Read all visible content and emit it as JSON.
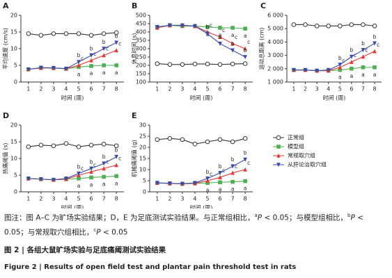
{
  "chart_data": [
    {
      "type": "line",
      "title": "A",
      "ylabel": "平均速度 (cm/s)",
      "xlabel": "时间 (周)",
      "x": [
        1,
        2,
        3,
        4,
        5,
        6,
        7,
        8
      ],
      "xlim": [
        0.4,
        8.6
      ],
      "xticks": [
        1,
        2,
        3,
        4,
        5,
        6,
        7,
        8
      ],
      "ylim": [
        0,
        20
      ],
      "yticks": [
        0,
        5,
        10,
        15,
        20
      ],
      "series": [
        {
          "color": "#333333",
          "marker": "circle",
          "values": [
            14.5,
            14,
            14.5,
            14.5,
            14.5,
            14,
            14.5,
            14.8
          ]
        },
        {
          "color": "#4caf50",
          "marker": "square",
          "values": [
            3.8,
            4.3,
            4.2,
            4,
            4.5,
            4.8,
            5,
            5
          ],
          "letters": [
            null,
            null,
            null,
            null,
            "a",
            "a",
            "a",
            "a"
          ]
        },
        {
          "color": "#e53935",
          "marker": "triangle",
          "values": [
            3.8,
            4.2,
            4.2,
            4,
            5,
            6.5,
            8,
            9.5
          ],
          "letters": [
            null,
            null,
            null,
            null,
            "c",
            "c",
            "c",
            "c"
          ]
        },
        {
          "color": "#3949ab",
          "marker": "down",
          "values": [
            3.8,
            4.3,
            4.2,
            4,
            6,
            8,
            10,
            11.8
          ],
          "letters": [
            null,
            null,
            null,
            null,
            "b",
            "b",
            "b",
            "b"
          ]
        }
      ]
    },
    {
      "type": "line",
      "title": "B",
      "ylabel": "休息时间 (s)",
      "xlabel": "时间 (周)",
      "x": [
        1,
        2,
        3,
        4,
        5,
        6,
        7,
        8
      ],
      "xlim": [
        0.4,
        8.6
      ],
      "xticks": [
        1,
        2,
        3,
        4,
        5,
        6,
        7,
        8
      ],
      "ylim": [
        100,
        500
      ],
      "yticks": [
        100,
        150,
        200,
        250,
        300,
        350,
        400,
        450,
        500
      ],
      "series": [
        {
          "color": "#333333",
          "marker": "circle",
          "values": [
            210,
            205,
            205,
            208,
            208,
            205,
            208,
            210
          ]
        },
        {
          "color": "#4caf50",
          "marker": "square",
          "values": [
            430,
            440,
            435,
            435,
            430,
            425,
            425,
            420
          ],
          "letters": [
            null,
            null,
            null,
            null,
            "a",
            "a",
            "a",
            "a"
          ]
        },
        {
          "color": "#e53935",
          "marker": "triangle",
          "values": [
            425,
            440,
            440,
            435,
            400,
            370,
            330,
            300
          ],
          "letters": [
            null,
            null,
            null,
            null,
            "c",
            "c",
            "c",
            "c"
          ]
        },
        {
          "color": "#3949ab",
          "marker": "down",
          "values": [
            430,
            440,
            440,
            435,
            390,
            330,
            290,
            250
          ],
          "letters": [
            null,
            null,
            null,
            null,
            "b",
            "b",
            "b",
            "b"
          ]
        }
      ]
    },
    {
      "type": "line",
      "title": "C",
      "ylabel": "运动总距离 (cm)",
      "xlabel": "时间 (周)",
      "x": [
        1,
        2,
        3,
        4,
        5,
        6,
        7,
        8
      ],
      "xlim": [
        0.4,
        8.6
      ],
      "xticks": [
        1,
        2,
        3,
        4,
        5,
        6,
        7,
        8
      ],
      "ylim": [
        1000,
        6000
      ],
      "yticks": [
        {
          "value": 1000,
          "label": "1 000"
        },
        {
          "value": 2000,
          "label": "2 000"
        },
        {
          "value": 3000,
          "label": "3 000"
        },
        {
          "value": 4000,
          "label": "4 000"
        },
        {
          "value": 5000,
          "label": "5 000"
        },
        {
          "value": 6000,
          "label": "6 000"
        }
      ],
      "series": [
        {
          "color": "#333333",
          "marker": "circle",
          "values": [
            5300,
            5300,
            5200,
            5200,
            5200,
            5300,
            5300,
            5200
          ]
        },
        {
          "color": "#4caf50",
          "marker": "square",
          "values": [
            1900,
            1900,
            1850,
            1850,
            1900,
            2000,
            2100,
            2100
          ],
          "letters": [
            null,
            null,
            null,
            null,
            "a",
            "a",
            "a",
            "a"
          ]
        },
        {
          "color": "#e53935",
          "marker": "triangle",
          "values": [
            1900,
            1900,
            1850,
            1850,
            2100,
            2500,
            2900,
            3300
          ],
          "letters": [
            null,
            null,
            null,
            null,
            "c",
            "c",
            "c",
            "c"
          ]
        },
        {
          "color": "#3949ab",
          "marker": "down",
          "values": [
            1900,
            1900,
            1850,
            1900,
            2300,
            2900,
            3400,
            3900
          ],
          "letters": [
            null,
            null,
            null,
            null,
            "b",
            "b",
            "b",
            "b"
          ]
        }
      ]
    },
    {
      "type": "line",
      "title": "D",
      "ylabel": "热痛阈值 (s)",
      "xlabel": "时间 (周)",
      "x": [
        1,
        2,
        3,
        4,
        5,
        6,
        7,
        8
      ],
      "xlim": [
        0.4,
        8.6
      ],
      "xticks": [
        1,
        2,
        3,
        4,
        5,
        6,
        7,
        8
      ],
      "ylim": [
        0,
        20
      ],
      "yticks": [
        0,
        5,
        10,
        15,
        20
      ],
      "series": [
        {
          "color": "#333333",
          "marker": "circle",
          "values": [
            13.5,
            14,
            13.8,
            14.5,
            13.5,
            14,
            14.3,
            13.8
          ]
        },
        {
          "color": "#4caf50",
          "marker": "square",
          "values": [
            4,
            3.8,
            3.6,
            3.8,
            4,
            4.3,
            4.5,
            4.7
          ],
          "letters": [
            null,
            null,
            null,
            null,
            "a",
            "a",
            "a",
            "a"
          ]
        },
        {
          "color": "#e53935",
          "marker": "triangle",
          "values": [
            4,
            3.8,
            3.6,
            3.8,
            5,
            6,
            7,
            8
          ],
          "letters": [
            null,
            null,
            null,
            null,
            "c",
            "c",
            "c",
            "c"
          ]
        },
        {
          "color": "#3949ab",
          "marker": "down",
          "values": [
            4,
            3.8,
            3.6,
            4,
            5.5,
            7,
            8.5,
            10.5
          ],
          "letters": [
            null,
            null,
            null,
            null,
            "b",
            "b",
            "b",
            "b"
          ]
        }
      ]
    },
    {
      "type": "line",
      "title": "E",
      "ylabel": "机械痛阈值 (g)",
      "xlabel": "时间 (周)",
      "x": [
        1,
        2,
        3,
        4,
        5,
        6,
        7,
        8
      ],
      "xlim": [
        0.4,
        8.6
      ],
      "xticks": [
        1,
        2,
        3,
        4,
        5,
        6,
        7,
        8
      ],
      "ylim": [
        0,
        30
      ],
      "yticks": [
        0,
        5,
        10,
        15,
        20,
        25,
        30
      ],
      "series": [
        {
          "name": "正常组",
          "color": "#333333",
          "marker": "circle",
          "values": [
            23.5,
            24,
            23.5,
            21.5,
            22.5,
            23.5,
            22.5,
            24
          ]
        },
        {
          "name": "模型组",
          "color": "#4caf50",
          "marker": "square",
          "values": [
            4,
            3.8,
            3.6,
            3.8,
            4,
            4.3,
            4.5,
            4.8
          ],
          "letters": [
            null,
            null,
            null,
            null,
            "a",
            "a",
            "a",
            "a"
          ]
        },
        {
          "name": "常规取穴组",
          "color": "#e53935",
          "marker": "triangle",
          "values": [
            4,
            3.8,
            3.6,
            3.8,
            5,
            6.5,
            8.5,
            10
          ],
          "letters": [
            null,
            null,
            null,
            null,
            "c",
            "c",
            "c",
            "c"
          ]
        },
        {
          "name": "从肝论治取穴组",
          "color": "#3949ab",
          "marker": "down",
          "values": [
            4,
            3.8,
            3.6,
            4,
            6,
            8.5,
            11.5,
            14.5
          ],
          "letters": [
            null,
            null,
            null,
            null,
            "b",
            "b",
            "b",
            "b"
          ]
        }
      ]
    }
  ],
  "caption": {
    "note": [
      "图注：图 A–C 为旷场实验结果；D，E 为足底测试实验结果。与正常组相比，",
      "a",
      "P",
      " < 0.05；与模型组相比，",
      "b",
      "P",
      " < 0.05；与常规取穴组相比，",
      "c",
      "P",
      " < 0.05"
    ],
    "title": "图 2 | 各组大鼠旷场实验与足底痛阈测试实验结果",
    "english": "Figure 2 | Results of open field test and plantar pain threshold test in rats"
  }
}
